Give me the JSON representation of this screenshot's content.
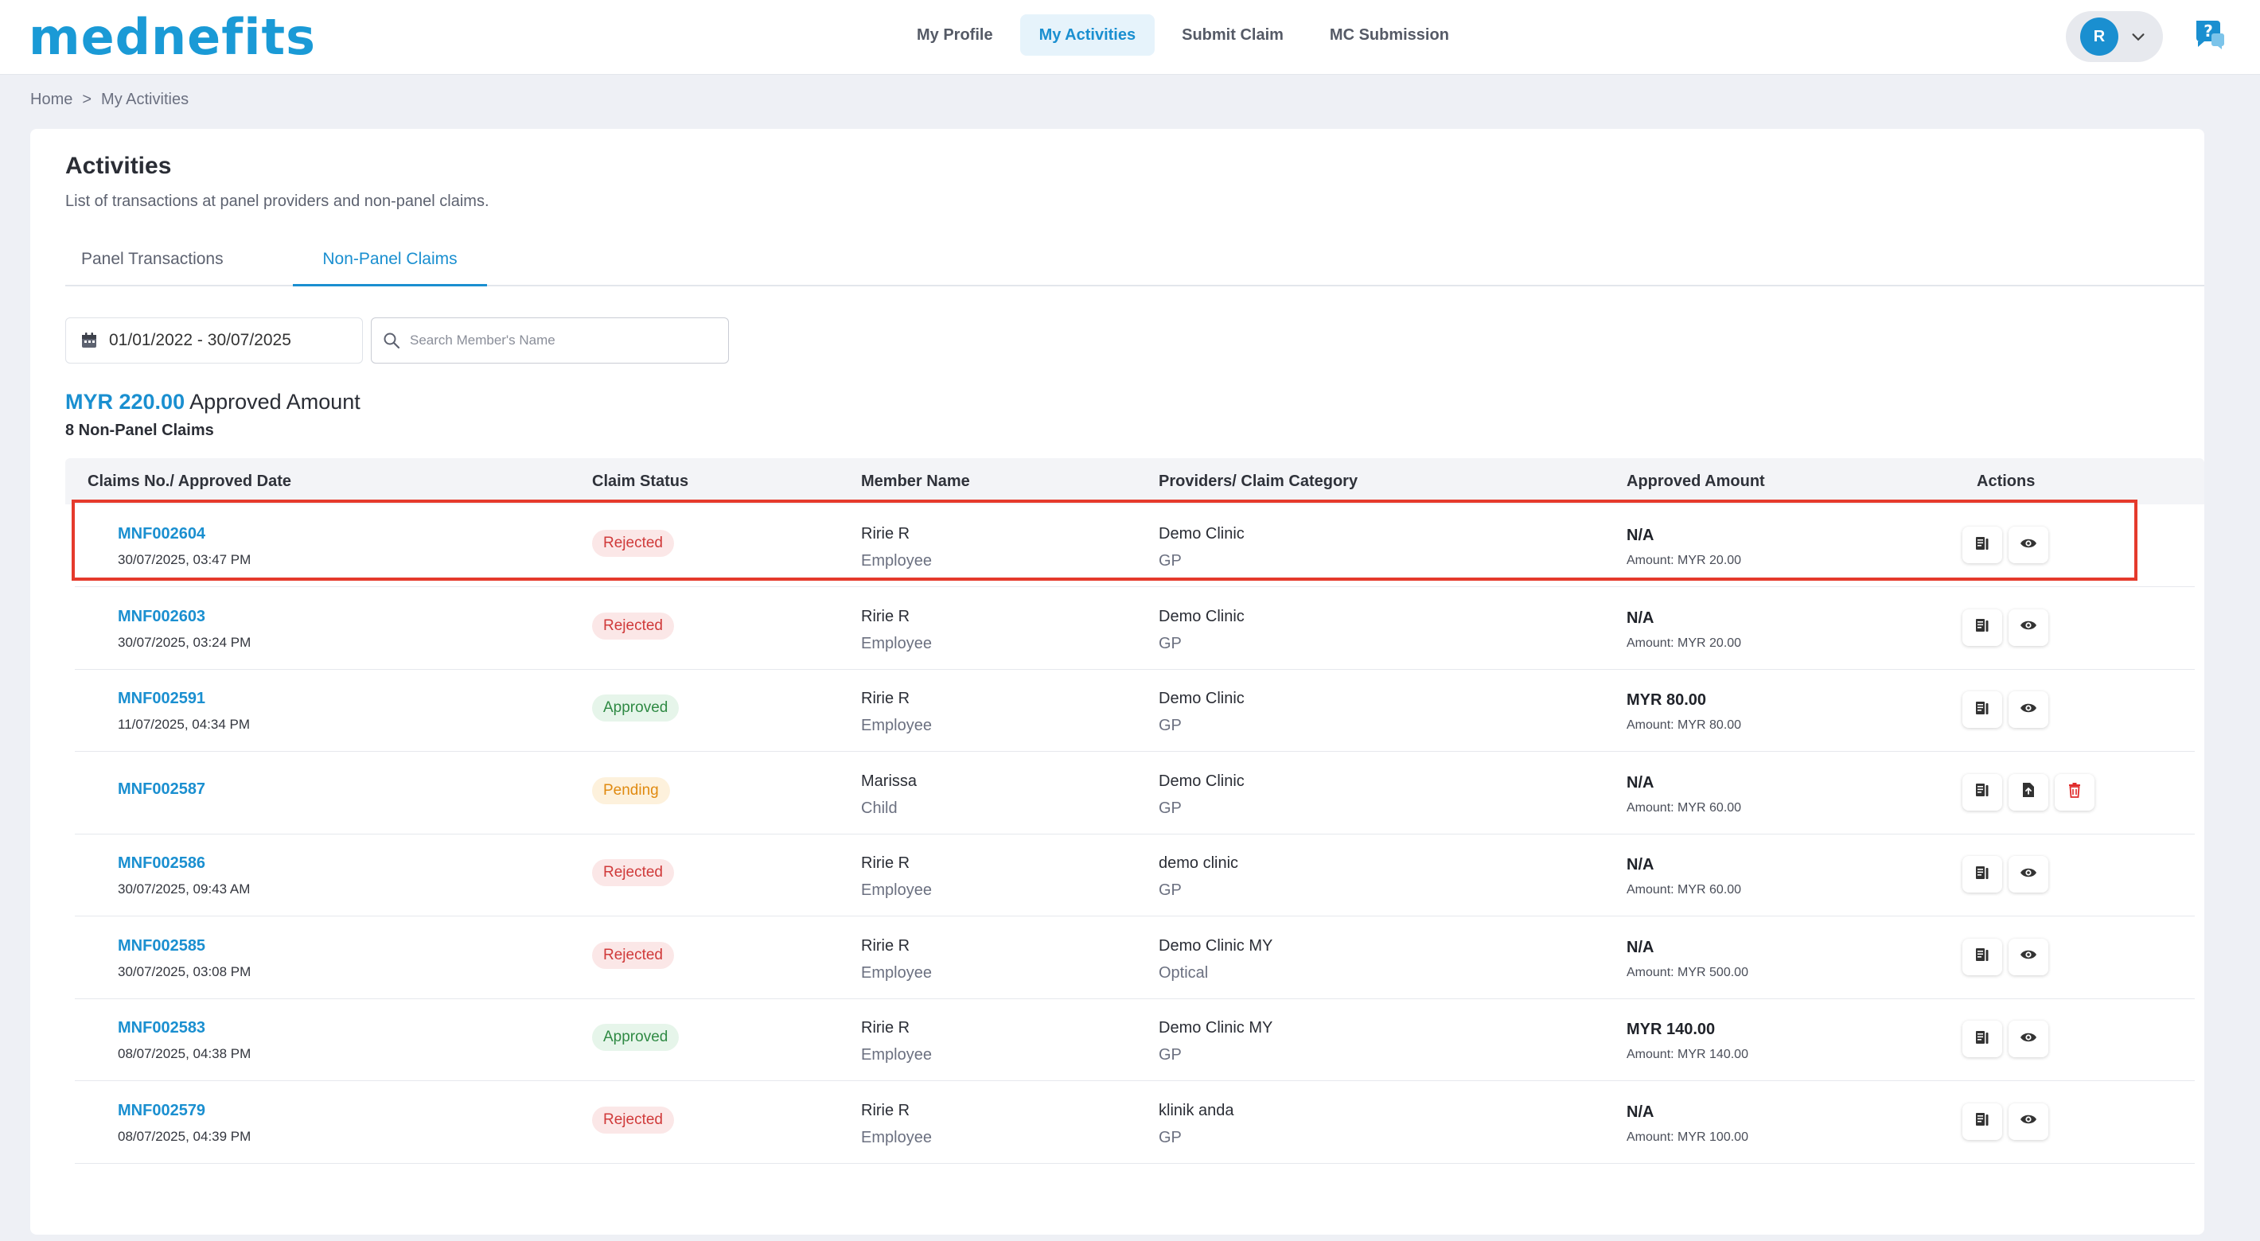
{
  "app": {
    "logo_text": "mednefits"
  },
  "nav": {
    "items": [
      {
        "label": "My Profile"
      },
      {
        "label": "My Activities"
      },
      {
        "label": "Submit Claim"
      },
      {
        "label": "MC Submission"
      }
    ],
    "active_index": 1
  },
  "user": {
    "initial": "R"
  },
  "breadcrumb": {
    "home": "Home",
    "separator": ">",
    "current": "My Activities"
  },
  "page": {
    "title": "Activities",
    "subtitle": "List of transactions at panel providers and non-panel claims."
  },
  "tabs": [
    {
      "label": "Panel Transactions"
    },
    {
      "label": "Non-Panel Claims"
    }
  ],
  "filters": {
    "date_range": "01/01/2022 - 30/07/2025",
    "search_placeholder": "Search Member's Name",
    "search_value": ""
  },
  "summary": {
    "amount": "MYR 220.00",
    "amount_label": "Approved Amount",
    "count_text": "8 Non-Panel Claims"
  },
  "table": {
    "headers": {
      "claim": "Claims No./ Approved Date",
      "status": "Claim Status",
      "member": "Member Name",
      "provider": "Providers/ Claim Category",
      "amount": "Approved Amount",
      "actions": "Actions"
    },
    "rows": [
      {
        "claim_no": "MNF002604",
        "date": "30/07/2025, 03:47 PM",
        "status": "Rejected",
        "member": "Ririe R",
        "relation": "Employee",
        "provider": "Demo Clinic",
        "category": "GP",
        "approved": "N/A",
        "amount_text": "Amount: MYR 20.00"
      },
      {
        "claim_no": "MNF002603",
        "date": "30/07/2025, 03:24 PM",
        "status": "Rejected",
        "member": "Ririe R",
        "relation": "Employee",
        "provider": "Demo Clinic",
        "category": "GP",
        "approved": "N/A",
        "amount_text": "Amount: MYR 20.00"
      },
      {
        "claim_no": "MNF002591",
        "date": "11/07/2025, 04:34 PM",
        "status": "Approved",
        "member": "Ririe R",
        "relation": "Employee",
        "provider": "Demo Clinic",
        "category": "GP",
        "approved": "MYR 80.00",
        "amount_text": "Amount: MYR 80.00"
      },
      {
        "claim_no": "MNF002587",
        "date": "",
        "status": "Pending",
        "member": "Marissa",
        "relation": "Child",
        "provider": "Demo Clinic",
        "category": "GP",
        "approved": "N/A",
        "amount_text": "Amount: MYR 60.00"
      },
      {
        "claim_no": "MNF002586",
        "date": "30/07/2025, 09:43 AM",
        "status": "Rejected",
        "member": "Ririe R",
        "relation": "Employee",
        "provider": "demo clinic",
        "category": "GP",
        "approved": "N/A",
        "amount_text": "Amount: MYR 60.00"
      },
      {
        "claim_no": "MNF002585",
        "date": "30/07/2025, 03:08 PM",
        "status": "Rejected",
        "member": "Ririe R",
        "relation": "Employee",
        "provider": "Demo Clinic MY",
        "category": "Optical",
        "approved": "N/A",
        "amount_text": "Amount: MYR 500.00"
      },
      {
        "claim_no": "MNF002583",
        "date": "08/07/2025, 04:38 PM",
        "status": "Approved",
        "member": "Ririe R",
        "relation": "Employee",
        "provider": "Demo Clinic MY",
        "category": "GP",
        "approved": "MYR 140.00",
        "amount_text": "Amount: MYR 140.00"
      },
      {
        "claim_no": "MNF002579",
        "date": "08/07/2025, 04:39 PM",
        "status": "Rejected",
        "member": "Ririe R",
        "relation": "Employee",
        "provider": "klinik anda",
        "category": "GP",
        "approved": "N/A",
        "amount_text": "Amount: MYR 100.00"
      }
    ]
  },
  "icons": {
    "receipt": "receipt-icon",
    "view": "eye-icon",
    "upload": "upload-doc-icon",
    "delete": "trash-icon",
    "calendar": "calendar-icon",
    "search": "search-icon"
  },
  "colors": {
    "primary": "#1a8fd0",
    "rejected": "#d03a3a",
    "approved": "#2f8a44",
    "pending": "#e08a10",
    "highlight": "#e53a2c"
  }
}
